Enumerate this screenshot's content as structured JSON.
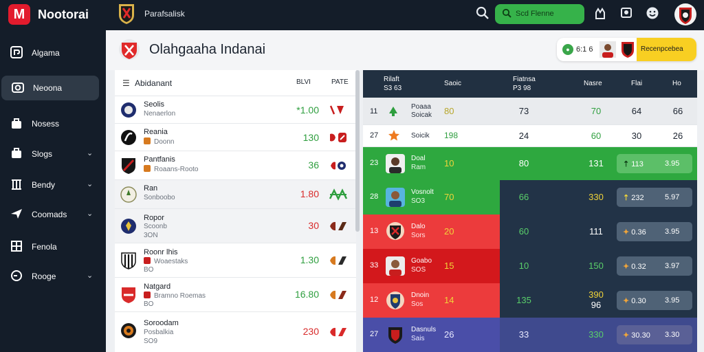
{
  "app": {
    "logo_letter": "M",
    "title": "Nootorai"
  },
  "topbar": {
    "team_label": "Parafsalisk",
    "search_value": "Scd Flenne"
  },
  "sidebar": {
    "items": [
      {
        "label": "Algama",
        "icon": "dashboard-icon"
      },
      {
        "label": "Neoona",
        "icon": "camera-icon"
      },
      {
        "label": "Nosess",
        "icon": "bag-icon"
      },
      {
        "label": "Slogs",
        "icon": "briefcase-icon"
      },
      {
        "label": "Bendy",
        "icon": "columns-icon"
      },
      {
        "label": "Coomads",
        "icon": "plane-icon"
      },
      {
        "label": "Fenola",
        "icon": "grid-icon"
      },
      {
        "label": "Rooge",
        "icon": "clock-icon"
      }
    ]
  },
  "page": {
    "title": "Olahgaaha Indanai",
    "card_number": "6:1 6",
    "card_label": "Recenpcebea"
  },
  "list": {
    "header": {
      "title": "Abidanant",
      "col1": "BLVI",
      "col2": "PATE"
    },
    "rows": [
      {
        "name": "Seolis",
        "sub": "Nenaerlon",
        "value": "*1.00",
        "color": "green"
      },
      {
        "name": "Reania",
        "sub": "Doonn",
        "value": "130",
        "color": "green"
      },
      {
        "name": "Pantfanis",
        "sub": "Roaans-Rooto",
        "value": "36",
        "color": "green"
      },
      {
        "name": "Ran",
        "sub": "Sonboobo",
        "value": "1.80",
        "color": "red"
      },
      {
        "name": "Ropor",
        "sub": "Scoonb",
        "sub2": "3ON",
        "value": "30",
        "color": "red"
      },
      {
        "name": "Roonr lhis",
        "sub": "Woaestaks",
        "sub2": "BO",
        "value": "1.30",
        "color": "green"
      },
      {
        "name": "Natgard",
        "sub": "Bramno Roemas",
        "sub2": "BO",
        "value": "16.80",
        "color": "green"
      },
      {
        "name": "Soroodam",
        "sub": "Posbalkia",
        "sub2": "SO9",
        "value": "230",
        "color": "red"
      }
    ]
  },
  "table": {
    "header": {
      "c1_line1": "Rilaft",
      "c1_line2": "S3 63",
      "c2": "Saoic",
      "c3_line1": "Fiatnsa",
      "c3_line2": "P3 98",
      "c4": "Nasre",
      "c5": "Flai",
      "c6": "Ho"
    },
    "rows": [
      {
        "rank": "11",
        "name": "Poaaa",
        "name2": "Soicak",
        "pts": "80",
        "c1": "73",
        "c2": "70",
        "c3": "64",
        "c4": "66"
      },
      {
        "rank": "27",
        "name": "Soicik",
        "pts": "198",
        "c1": "24",
        "c2": "60",
        "c3": "30",
        "c4": "26"
      },
      {
        "rank": "23",
        "name": "Doal",
        "name2": "Ram",
        "pts": "10",
        "c1": "80",
        "c2": "131",
        "chip_a": "113",
        "chip_b": "3.95"
      },
      {
        "rank": "28",
        "name": "Vosnolt",
        "name2": "SO3",
        "pts": "70",
        "c1": "66",
        "c2": "330",
        "chip_a": "232",
        "chip_b": "5.97"
      },
      {
        "rank": "13",
        "name": "Dalo",
        "name2": "Sors",
        "pts": "20",
        "c1": "60",
        "c2": "111",
        "chip_a": "0.36",
        "chip_b": "3.95"
      },
      {
        "rank": "33",
        "name": "Goabo",
        "name2": "SOS",
        "pts": "15",
        "c1": "10",
        "c2": "150",
        "chip_a": "0.32",
        "chip_b": "3.97"
      },
      {
        "rank": "12",
        "name": "Dnoin",
        "name2": "Sos",
        "pts": "14",
        "c1": "135",
        "c2": "390",
        "c2b": "96",
        "chip_a": "0.30",
        "chip_b": "3.95"
      },
      {
        "rank": "27",
        "name": "Dasnuls",
        "name2": "Sais",
        "pts": "26",
        "c1": "33",
        "c2": "330",
        "chip_a": "30.30",
        "chip_b": "3.30"
      }
    ]
  },
  "colors": {
    "topbar": "#141d29",
    "accent_green": "#2ea83f",
    "accent_red": "#e8373a",
    "deep_red": "#d3181c",
    "indigo": "#4a4ea8",
    "navy": "#223347"
  }
}
